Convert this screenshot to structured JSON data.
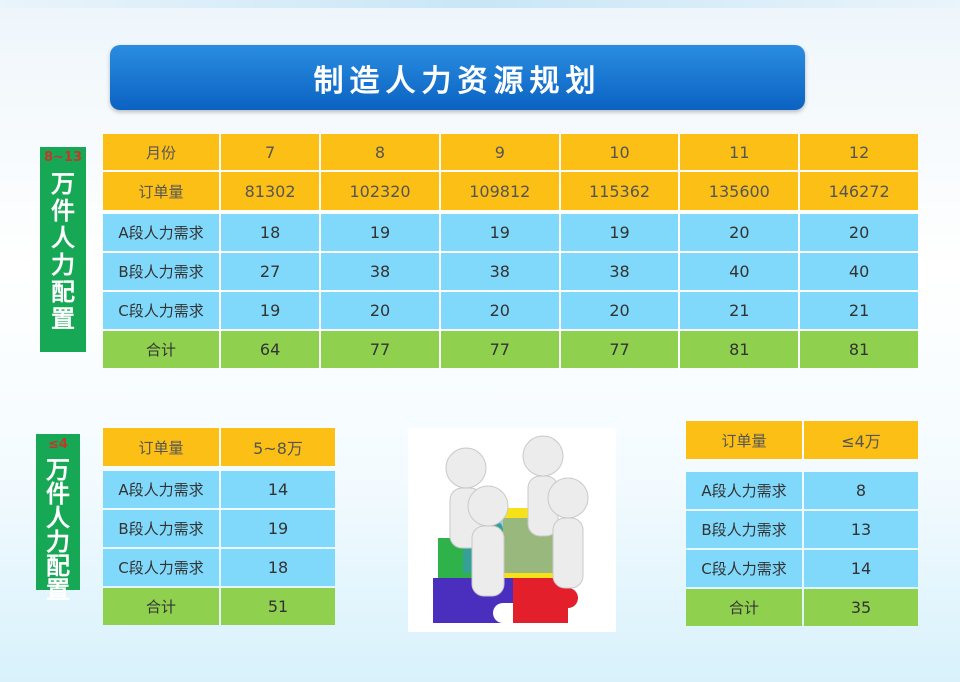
{
  "title": "制造人力资源规划",
  "side_top": {
    "range": "8~13",
    "label": [
      "万",
      "件",
      "人",
      "力",
      "配",
      "置"
    ]
  },
  "side_bottom": {
    "range": "≤4",
    "label": [
      "万",
      "件",
      "人",
      "力",
      "配",
      "置"
    ]
  },
  "main_table": {
    "months_label": "月份",
    "months": [
      "7",
      "8",
      "9",
      "10",
      "11",
      "12"
    ],
    "orders_label": "订单量",
    "orders": [
      "81302",
      "102320",
      "109812",
      "115362",
      "135600",
      "146272"
    ],
    "rows": [
      {
        "label": "A段人力需求",
        "values": [
          "18",
          "19",
          "19",
          "19",
          "20",
          "20"
        ]
      },
      {
        "label": "B段人力需求",
        "values": [
          "27",
          "38",
          "38",
          "38",
          "40",
          "40"
        ]
      },
      {
        "label": "C段人力需求",
        "values": [
          "19",
          "20",
          "20",
          "20",
          "21",
          "21"
        ]
      }
    ],
    "total_label": "合计",
    "totals": [
      "64",
      "77",
      "77",
      "77",
      "81",
      "81"
    ]
  },
  "left_table": {
    "orders_label": "订单量",
    "orders": "5~8万",
    "rows": [
      {
        "label": "A段人力需求",
        "value": "14"
      },
      {
        "label": "B段人力需求",
        "value": "19"
      },
      {
        "label": "C段人力需求",
        "value": "18"
      }
    ],
    "total_label": "合计",
    "total": "51"
  },
  "right_table": {
    "orders_label": "订单量",
    "orders": "≤4万",
    "rows": [
      {
        "label": "A段人力需求",
        "value": "8"
      },
      {
        "label": "B段人力需求",
        "value": "13"
      },
      {
        "label": "C段人力需求",
        "value": "14"
      }
    ],
    "total_label": "合计",
    "total": "35"
  },
  "colors": {
    "orange": "#fbbf16",
    "blue": "#80d8fa",
    "green": "#8fd14f",
    "title": "#0b62c2",
    "side": "#17a856"
  }
}
